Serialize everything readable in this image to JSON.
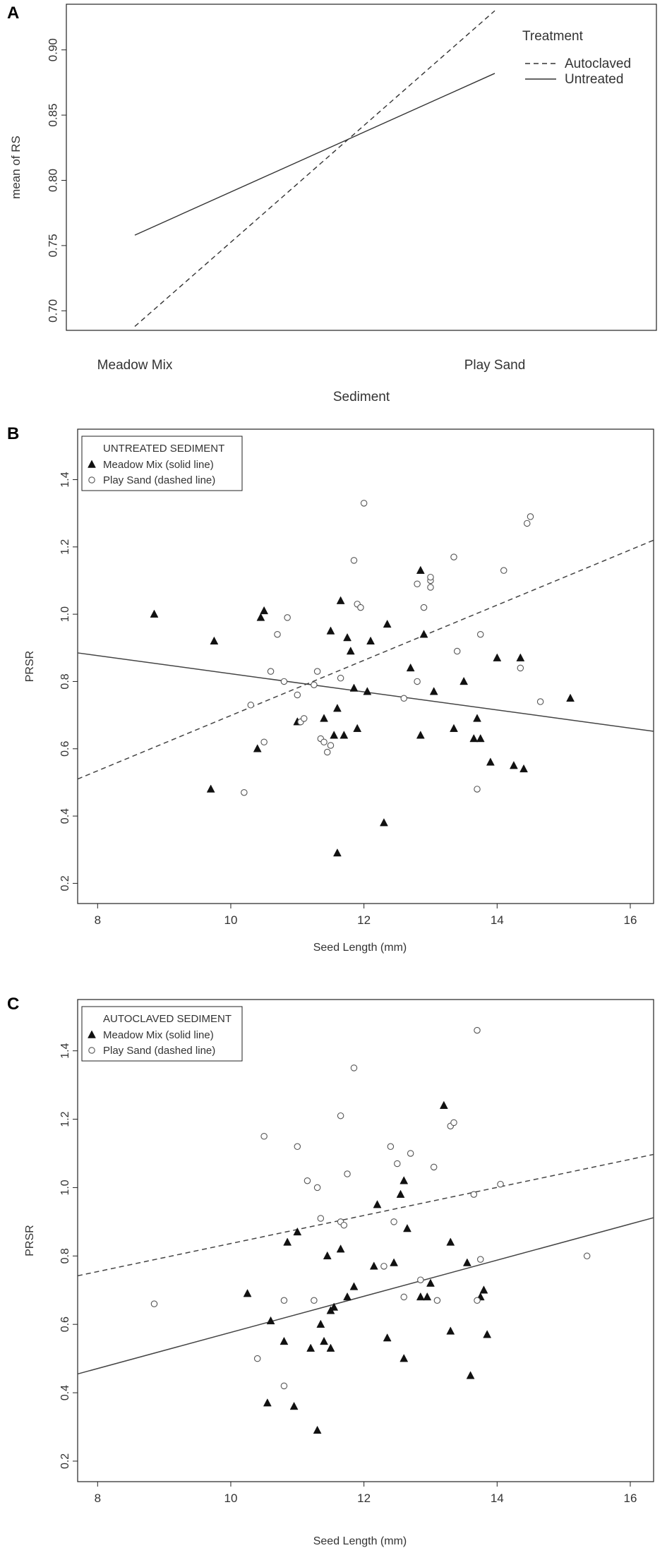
{
  "chart_data": [
    {
      "panel": "A",
      "type": "line",
      "xlabel": "Sediment",
      "ylabel": "mean of RS",
      "categories": [
        "Meadow Mix",
        "Play Sand"
      ],
      "ylim": [
        0.685,
        0.935
      ],
      "yticks": [
        0.7,
        0.75,
        0.8,
        0.85,
        0.9
      ],
      "legend": {
        "title": "Treatment",
        "position": "top-right"
      },
      "series": [
        {
          "name": "Autoclaved",
          "style": "dashed",
          "values": [
            0.688,
            0.93
          ]
        },
        {
          "name": "Untreated",
          "style": "solid",
          "values": [
            0.758,
            0.882
          ]
        }
      ]
    },
    {
      "panel": "B",
      "type": "scatter",
      "xlabel": "Seed Length (mm)",
      "ylabel": "PRSR",
      "xlim": [
        7.7,
        16.35
      ],
      "ylim": [
        0.14,
        1.55
      ],
      "xticks": [
        8,
        10,
        12,
        14,
        16
      ],
      "yticks": [
        0.2,
        0.4,
        0.6,
        0.8,
        1.0,
        1.2,
        1.4
      ],
      "legend": {
        "title": "UNTREATED SEDIMENT",
        "position": "top-left"
      },
      "series": [
        {
          "name": "Meadow Mix (solid line)",
          "marker": "filled-triangle",
          "fit": "solid",
          "fit_line": [
            [
              7.7,
              0.885
            ],
            [
              16.35,
              0.652
            ]
          ],
          "points": [
            [
              8.85,
              1.0
            ],
            [
              9.7,
              0.48
            ],
            [
              9.75,
              0.92
            ],
            [
              10.4,
              0.6
            ],
            [
              10.45,
              0.99
            ],
            [
              10.5,
              1.01
            ],
            [
              11.0,
              0.68
            ],
            [
              11.4,
              0.69
            ],
            [
              11.5,
              0.95
            ],
            [
              11.55,
              0.64
            ],
            [
              11.6,
              0.72
            ],
            [
              11.6,
              0.29
            ],
            [
              11.65,
              1.04
            ],
            [
              11.7,
              0.64
            ],
            [
              11.75,
              0.93
            ],
            [
              11.8,
              0.89
            ],
            [
              11.85,
              0.78
            ],
            [
              11.9,
              0.66
            ],
            [
              12.05,
              0.77
            ],
            [
              12.1,
              0.92
            ],
            [
              12.3,
              0.38
            ],
            [
              12.35,
              0.97
            ],
            [
              12.7,
              0.84
            ],
            [
              12.85,
              0.64
            ],
            [
              12.85,
              1.13
            ],
            [
              12.9,
              0.94
            ],
            [
              13.05,
              0.77
            ],
            [
              13.35,
              0.66
            ],
            [
              13.5,
              0.8
            ],
            [
              13.65,
              0.63
            ],
            [
              13.7,
              0.69
            ],
            [
              13.75,
              0.63
            ],
            [
              13.9,
              0.56
            ],
            [
              14.0,
              0.87
            ],
            [
              14.25,
              0.55
            ],
            [
              14.35,
              0.87
            ],
            [
              14.4,
              0.54
            ],
            [
              15.1,
              0.75
            ]
          ]
        },
        {
          "name": "Play Sand (dashed line)",
          "marker": "open-circle",
          "fit": "dashed",
          "fit_line": [
            [
              7.7,
              0.51
            ],
            [
              16.35,
              1.22
            ]
          ],
          "points": [
            [
              10.2,
              0.47
            ],
            [
              10.3,
              0.73
            ],
            [
              10.5,
              0.62
            ],
            [
              10.6,
              0.83
            ],
            [
              10.7,
              0.94
            ],
            [
              10.8,
              0.8
            ],
            [
              10.85,
              0.99
            ],
            [
              11.0,
              0.76
            ],
            [
              11.05,
              0.68
            ],
            [
              11.1,
              0.69
            ],
            [
              11.25,
              0.79
            ],
            [
              11.3,
              0.83
            ],
            [
              11.35,
              0.63
            ],
            [
              11.4,
              0.62
            ],
            [
              11.45,
              0.59
            ],
            [
              11.5,
              0.61
            ],
            [
              11.65,
              0.81
            ],
            [
              11.85,
              1.16
            ],
            [
              11.9,
              1.03
            ],
            [
              11.95,
              1.02
            ],
            [
              12.0,
              1.33
            ],
            [
              12.6,
              0.75
            ],
            [
              12.8,
              0.8
            ],
            [
              12.8,
              1.09
            ],
            [
              12.9,
              1.02
            ],
            [
              13.0,
              1.1
            ],
            [
              13.0,
              1.11
            ],
            [
              13.0,
              1.08
            ],
            [
              13.35,
              1.17
            ],
            [
              13.4,
              0.89
            ],
            [
              13.7,
              0.48
            ],
            [
              13.75,
              0.94
            ],
            [
              14.1,
              1.13
            ],
            [
              14.35,
              0.84
            ],
            [
              14.45,
              1.27
            ],
            [
              14.5,
              1.29
            ],
            [
              14.65,
              0.74
            ]
          ]
        }
      ]
    },
    {
      "panel": "C",
      "type": "scatter",
      "xlabel": "Seed Length (mm)",
      "ylabel": "PRSR",
      "xlim": [
        7.7,
        16.35
      ],
      "ylim": [
        0.14,
        1.55
      ],
      "xticks": [
        8,
        10,
        12,
        14,
        16
      ],
      "yticks": [
        0.2,
        0.4,
        0.6,
        0.8,
        1.0,
        1.2,
        1.4
      ],
      "legend": {
        "title": "AUTOCLAVED SEDIMENT",
        "position": "top-left"
      },
      "series": [
        {
          "name": "Meadow Mix (solid line)",
          "marker": "filled-triangle",
          "fit": "solid",
          "fit_line": [
            [
              7.7,
              0.455
            ],
            [
              16.35,
              0.912
            ]
          ],
          "points": [
            [
              10.25,
              0.69
            ],
            [
              10.55,
              0.37
            ],
            [
              10.6,
              0.61
            ],
            [
              10.8,
              0.55
            ],
            [
              10.85,
              0.84
            ],
            [
              10.95,
              0.36
            ],
            [
              11.0,
              0.87
            ],
            [
              11.2,
              0.53
            ],
            [
              11.3,
              0.29
            ],
            [
              11.35,
              0.6
            ],
            [
              11.4,
              0.55
            ],
            [
              11.45,
              0.8
            ],
            [
              11.5,
              0.53
            ],
            [
              11.5,
              0.64
            ],
            [
              11.55,
              0.65
            ],
            [
              11.65,
              0.82
            ],
            [
              11.75,
              0.68
            ],
            [
              11.85,
              0.71
            ],
            [
              12.15,
              0.77
            ],
            [
              12.2,
              0.95
            ],
            [
              12.35,
              0.56
            ],
            [
              12.45,
              0.78
            ],
            [
              12.55,
              0.98
            ],
            [
              12.6,
              0.5
            ],
            [
              12.6,
              1.02
            ],
            [
              12.65,
              0.88
            ],
            [
              12.85,
              0.68
            ],
            [
              12.95,
              0.68
            ],
            [
              13.0,
              0.72
            ],
            [
              13.2,
              1.24
            ],
            [
              13.3,
              0.84
            ],
            [
              13.3,
              0.58
            ],
            [
              13.55,
              0.78
            ],
            [
              13.6,
              0.45
            ],
            [
              13.75,
              0.68
            ],
            [
              13.8,
              0.7
            ],
            [
              13.85,
              0.57
            ]
          ]
        },
        {
          "name": "Play Sand (dashed line)",
          "marker": "open-circle",
          "fit": "dashed",
          "fit_line": [
            [
              7.7,
              0.742
            ],
            [
              16.35,
              1.097
            ]
          ],
          "points": [
            [
              8.85,
              0.66
            ],
            [
              10.4,
              0.5
            ],
            [
              10.5,
              1.15
            ],
            [
              10.8,
              0.42
            ],
            [
              10.8,
              0.67
            ],
            [
              11.0,
              1.12
            ],
            [
              11.15,
              1.02
            ],
            [
              11.25,
              0.67
            ],
            [
              11.3,
              1.0
            ],
            [
              11.35,
              0.91
            ],
            [
              11.65,
              0.9
            ],
            [
              11.65,
              1.21
            ],
            [
              11.7,
              0.89
            ],
            [
              11.75,
              1.04
            ],
            [
              11.85,
              1.35
            ],
            [
              12.3,
              0.77
            ],
            [
              12.4,
              1.12
            ],
            [
              12.45,
              0.9
            ],
            [
              12.5,
              1.07
            ],
            [
              12.6,
              0.68
            ],
            [
              12.7,
              1.1
            ],
            [
              12.85,
              0.73
            ],
            [
              13.05,
              1.06
            ],
            [
              13.1,
              0.67
            ],
            [
              13.3,
              1.18
            ],
            [
              13.35,
              1.19
            ],
            [
              13.65,
              0.98
            ],
            [
              13.7,
              0.67
            ],
            [
              13.7,
              1.46
            ],
            [
              13.75,
              0.79
            ],
            [
              14.05,
              1.01
            ],
            [
              15.35,
              0.8
            ]
          ]
        }
      ]
    }
  ]
}
